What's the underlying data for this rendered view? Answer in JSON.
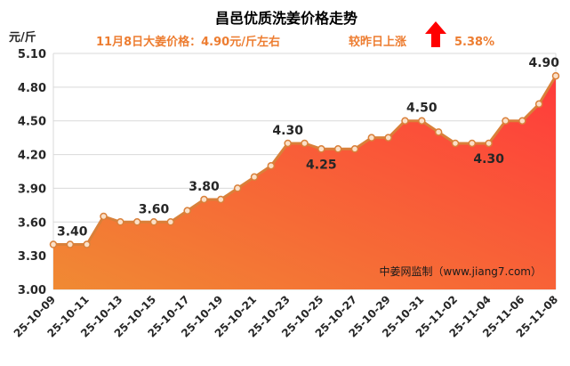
{
  "chart_data": {
    "type": "area",
    "title": "昌邑优质洗姜价格走势",
    "subtitle": "11月8日大姜价格：4.90元/斤左右",
    "change_text": "较昨日上涨",
    "change_value": "5.38%",
    "ylabel": "元/斤",
    "ylim": [
      3.0,
      5.1
    ],
    "yticks": [
      "3.00",
      "3.30",
      "3.60",
      "3.90",
      "4.20",
      "4.50",
      "4.80",
      "5.10"
    ],
    "watermark": "中姜网监制（www.jiang7.com）",
    "x": [
      "25-10-09",
      "25-10-10",
      "25-10-11",
      "25-10-12",
      "25-10-13",
      "25-10-14",
      "25-10-15",
      "25-10-16",
      "25-10-17",
      "25-10-18",
      "25-10-19",
      "25-10-20",
      "25-10-21",
      "25-10-22",
      "25-10-23",
      "25-10-24",
      "25-10-25",
      "25-10-26",
      "25-10-27",
      "25-10-28",
      "25-10-29",
      "25-10-30",
      "25-10-31",
      "25-11-01",
      "25-11-02",
      "25-11-03",
      "25-11-04",
      "25-11-05",
      "25-11-06",
      "25-11-07",
      "25-11-08"
    ],
    "xtick_labels": [
      "25-10-09",
      "25-10-11",
      "25-10-13",
      "25-10-15",
      "25-10-17",
      "25-10-19",
      "25-10-21",
      "25-10-23",
      "25-10-25",
      "25-10-27",
      "25-10-29",
      "25-10-31",
      "25-11-02",
      "25-11-04",
      "25-11-06",
      "25-11-08"
    ],
    "series": [
      {
        "values": [
          3.4,
          3.4,
          3.4,
          3.65,
          3.6,
          3.6,
          3.6,
          3.6,
          3.7,
          3.8,
          3.8,
          3.9,
          4.0,
          4.1,
          4.3,
          4.3,
          4.25,
          4.25,
          4.25,
          4.35,
          4.35,
          4.5,
          4.5,
          4.4,
          4.3,
          4.3,
          4.3,
          4.5,
          4.5,
          4.65,
          4.9
        ]
      }
    ],
    "data_labels": [
      {
        "x": "25-10-09",
        "text": "3.40",
        "pos": "above"
      },
      {
        "x": "25-10-15",
        "text": "3.60",
        "pos": "above"
      },
      {
        "x": "25-10-18",
        "text": "3.80",
        "pos": "above"
      },
      {
        "x": "25-10-23",
        "text": "4.30",
        "pos": "above"
      },
      {
        "x": "25-10-25",
        "text": "4.25",
        "pos": "below"
      },
      {
        "x": "25-10-31",
        "text": "4.50",
        "pos": "above"
      },
      {
        "x": "25-11-04",
        "text": "4.30",
        "pos": "below"
      },
      {
        "x": "25-11-08",
        "text": "4.90",
        "pos": "above"
      }
    ],
    "grid": true,
    "colors": {
      "title": "#000000",
      "subtitle": "#ed7d31",
      "line": "#d9803a",
      "marker_fill": "#fbe0c8",
      "area_top": "#ff3b3b",
      "area_bottom": "#f08a33",
      "arrow": "#ff0000",
      "grid": "#d9d9d9",
      "axis_text": "#262626"
    }
  }
}
